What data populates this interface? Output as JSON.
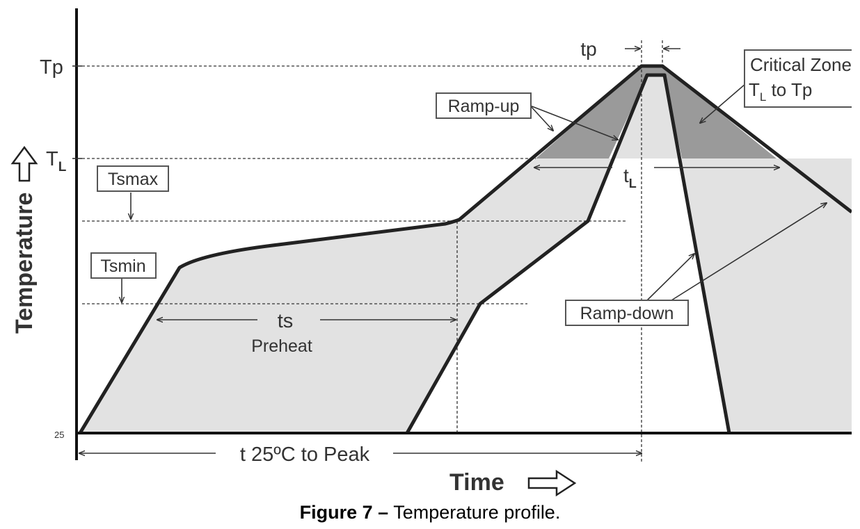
{
  "diagram": {
    "y_axis_label": "Temperature",
    "x_axis_label": "Time",
    "y_ticks": {
      "tp": "Tp",
      "tl_main": "T",
      "tl_sub": "L",
      "ambient": "25"
    },
    "boxes": {
      "tsmax": "Tsmax",
      "tsmin": "Tsmin",
      "ramp_up": "Ramp-up",
      "ramp_down": "Ramp-down",
      "critical_line1": "Critical Zone",
      "critical_line2_main": "T",
      "critical_line2_sub": "L",
      "critical_line2_rest": " to Tp"
    },
    "intervals": {
      "tp": "tp",
      "ts": "ts",
      "preheat": "Preheat",
      "tl_main": "t",
      "tl_sub": "L",
      "t25_peak": "t  25ºC to Peak"
    },
    "colors": {
      "preheat_fill": "#e2e2e2",
      "critical_fill": "#9a9a9a",
      "line": "#222222"
    }
  },
  "caption": {
    "bold": "Figure 7 –",
    "text": " Temperature profile."
  }
}
